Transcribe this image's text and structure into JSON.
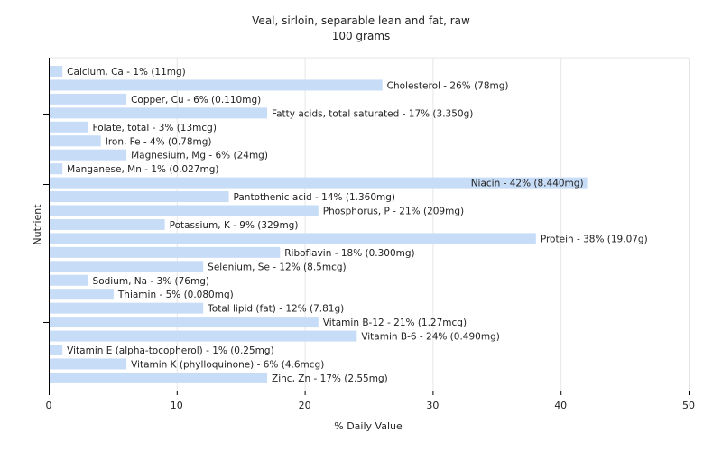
{
  "chart_data": {
    "type": "bar",
    "orientation": "horizontal",
    "title": "Veal, sirloin, separable lean and fat, raw",
    "subtitle": "100 grams",
    "xlabel": "% Daily Value",
    "ylabel": "Nutrient",
    "xlim": [
      0,
      50
    ],
    "xticks": [
      0,
      10,
      20,
      30,
      40,
      50
    ],
    "grid": true,
    "bar_color": "#c6dcf7",
    "bars": [
      {
        "label": "Calcium, Ca - 1% (11mg)",
        "value": 1
      },
      {
        "label": "Cholesterol - 26% (78mg)",
        "value": 26
      },
      {
        "label": "Copper, Cu - 6% (0.110mg)",
        "value": 6
      },
      {
        "label": "Fatty acids, total saturated - 17% (3.350g)",
        "value": 17
      },
      {
        "label": "Folate, total - 3% (13mcg)",
        "value": 3
      },
      {
        "label": "Iron, Fe - 4% (0.78mg)",
        "value": 4
      },
      {
        "label": "Magnesium, Mg - 6% (24mg)",
        "value": 6
      },
      {
        "label": "Manganese, Mn - 1% (0.027mg)",
        "value": 1
      },
      {
        "label": "Niacin - 42% (8.440mg)",
        "value": 42
      },
      {
        "label": "Pantothenic acid - 14% (1.360mg)",
        "value": 14
      },
      {
        "label": "Phosphorus, P - 21% (209mg)",
        "value": 21
      },
      {
        "label": "Potassium, K - 9% (329mg)",
        "value": 9
      },
      {
        "label": "Protein - 38% (19.07g)",
        "value": 38
      },
      {
        "label": "Riboflavin - 18% (0.300mg)",
        "value": 18
      },
      {
        "label": "Selenium, Se - 12% (8.5mcg)",
        "value": 12
      },
      {
        "label": "Sodium, Na - 3% (76mg)",
        "value": 3
      },
      {
        "label": "Thiamin - 5% (0.080mg)",
        "value": 5
      },
      {
        "label": "Total lipid (fat) - 12% (7.81g)",
        "value": 12
      },
      {
        "label": "Vitamin B-12 - 21% (1.27mcg)",
        "value": 21
      },
      {
        "label": "Vitamin B-6 - 24% (0.490mg)",
        "value": 24
      },
      {
        "label": "Vitamin E (alpha-tocopherol) - 1% (0.25mg)",
        "value": 1
      },
      {
        "label": "Vitamin K (phylloquinone) - 6% (4.6mcg)",
        "value": 6
      },
      {
        "label": "Zinc, Zn - 17% (2.55mg)",
        "value": 17
      }
    ]
  }
}
